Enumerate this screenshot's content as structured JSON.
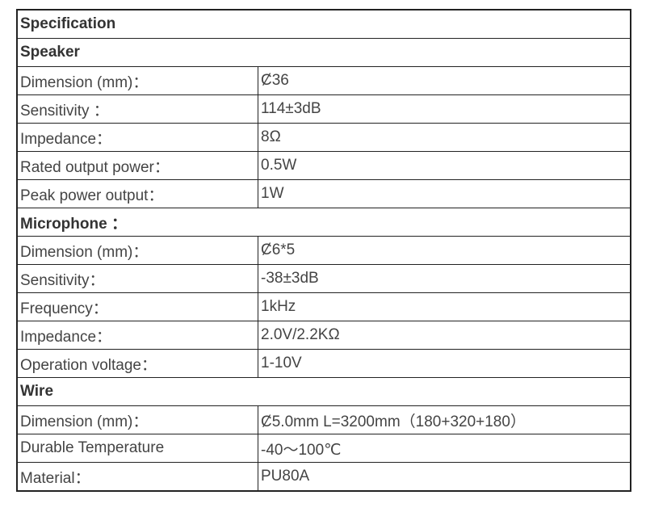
{
  "title": "Specification",
  "sections": [
    {
      "heading": "Speaker",
      "rows": [
        [
          "Dimension (mm)：",
          "Ȼ36"
        ],
        [
          "Sensitivity ：",
          "114±3dB"
        ],
        [
          "Impedance：",
          "8Ω"
        ],
        [
          "Rated output power：",
          "0.5W"
        ],
        [
          "Peak power output：",
          "1W"
        ]
      ]
    },
    {
      "heading": "Microphone ：",
      "rows": [
        [
          "Dimension (mm)：",
          "Ȼ6*5"
        ],
        [
          "Sensitivity：",
          "-38±3dB"
        ],
        [
          "Frequency：",
          "1kHz"
        ],
        [
          "Impedance：",
          "2.0V/2.2KΩ"
        ],
        [
          "Operation voltage：",
          "1-10V"
        ]
      ]
    },
    {
      "heading": "Wire",
      "rows": [
        [
          "Dimension (mm)：",
          "Ȼ5.0mm L=3200mm（180+320+180）"
        ],
        [
          "Durable Temperature",
          "-40～100℃"
        ],
        [
          "Material：",
          "PU80A"
        ]
      ]
    }
  ]
}
